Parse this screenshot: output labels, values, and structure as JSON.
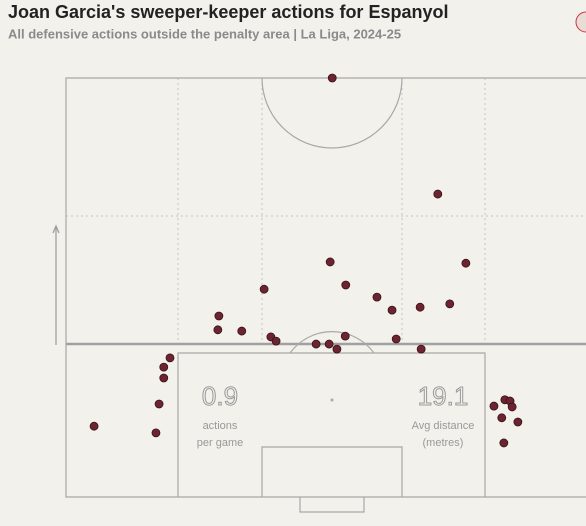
{
  "chart_data": {
    "type": "scatter",
    "title": "Joan Garcia's sweeper-keeper actions for Espanyol",
    "subtitle": "All defensive actions outside the penalty area | La Liga, 2024-25",
    "color": "#6b2430",
    "xlim": [
      0,
      100
    ],
    "ylim": [
      0,
      100
    ],
    "x": [
      51.2,
      71.5,
      76.9,
      50.8,
      53.8,
      38.1,
      59.8,
      62.7,
      68.1,
      73.8,
      29.4,
      29.2,
      33.8,
      39.4,
      40.4,
      48.1,
      50.6,
      52.1,
      53.7,
      63.5,
      68.3,
      20.0,
      18.8,
      18.8,
      17.9,
      5.4,
      17.3,
      82.3,
      84.4,
      85.4,
      85.8,
      83.8,
      86.9,
      84.2
    ],
    "y": [
      100,
      72.3,
      55.8,
      56.1,
      50.6,
      49.6,
      47.7,
      44.6,
      45.3,
      46.1,
      43.2,
      39.9,
      39.6,
      38.2,
      37.2,
      36.5,
      36.5,
      35.3,
      38.4,
      37.7,
      35.3,
      33.2,
      31.0,
      28.4,
      22.2,
      16.9,
      15.3,
      21.7,
      23.2,
      22.9,
      21.5,
      18.9,
      17.9,
      12.9
    ],
    "stats": [
      {
        "value": 0.9,
        "label": [
          "actions",
          "per game"
        ]
      },
      {
        "value": 19.1,
        "label": [
          "Avg distance",
          "(metres)"
        ]
      }
    ]
  }
}
